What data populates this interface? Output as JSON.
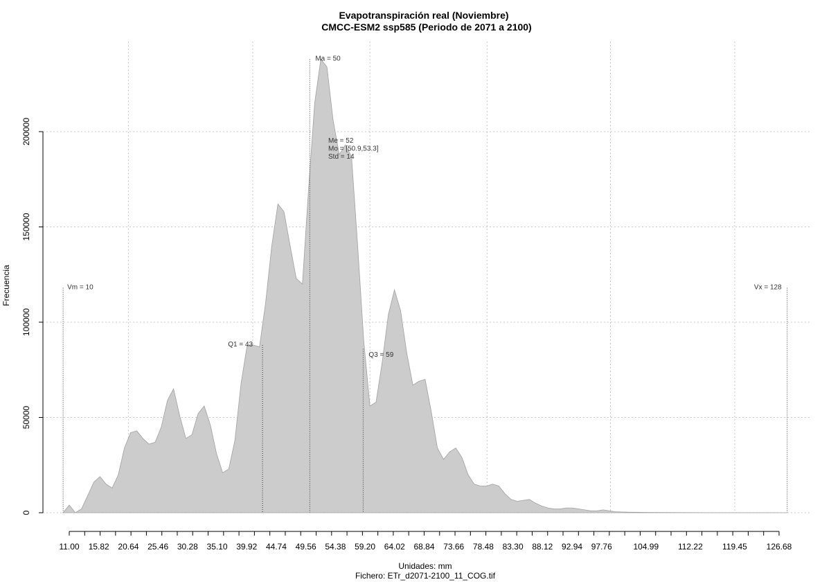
{
  "chart_data": {
    "type": "area",
    "title": "Evapotranspiración real (Noviembre)",
    "subtitle": "CMCC-ESM2 ssp585 (Periodo de 2071 a 2100)",
    "xlabel": "Unidades: mm",
    "ylabel": "Frecuencia",
    "caption": "Fichero: ETr_d2071-2100_11_COG.tif",
    "xlim": [
      8,
      130
    ],
    "ylim": [
      0,
      240000
    ],
    "grid": true,
    "x_ticks": [
      11.0,
      15.82,
      20.64,
      25.46,
      30.28,
      35.1,
      39.92,
      44.74,
      49.56,
      54.38,
      59.2,
      64.02,
      68.84,
      73.66,
      78.48,
      83.3,
      88.12,
      92.94,
      97.76,
      104.99,
      112.22,
      119.45,
      126.68
    ],
    "x_tick_labels": [
      "11.00",
      "15.82",
      "20.64",
      "25.46",
      "30.28",
      "35.10",
      "39.92",
      "44.74",
      "49.56",
      "54.38",
      "59.20",
      "64.02",
      "68.84",
      "73.66",
      "78.48",
      "83.30",
      "88.12",
      "92.94",
      "97.76",
      "104.99",
      "112.22",
      "119.45",
      "126.68"
    ],
    "y_ticks": [
      0,
      50000,
      100000,
      150000,
      200000
    ],
    "y_tick_labels": [
      "0",
      "50000",
      "100000",
      "150000",
      "200000"
    ],
    "series": [
      {
        "color": "#cccccc",
        "x": [
          10,
          11,
          12,
          13,
          14,
          15,
          16,
          17,
          18,
          19,
          20,
          21,
          22,
          23,
          24,
          25,
          26,
          27,
          28,
          29,
          30,
          31,
          32,
          33,
          34,
          35,
          36,
          37,
          38,
          39,
          40,
          41,
          42,
          43,
          44,
          45,
          46,
          47,
          48,
          49,
          50,
          51,
          52,
          53,
          54,
          55,
          56,
          57,
          58,
          59,
          60,
          61,
          62,
          63,
          64,
          65,
          66,
          67,
          68,
          69,
          70,
          71,
          72,
          73,
          74,
          75,
          76,
          77,
          78,
          79,
          80,
          81,
          82,
          83,
          84,
          85,
          86,
          87,
          88,
          89,
          90,
          91,
          92,
          93,
          94,
          95,
          96,
          97,
          98,
          99,
          100,
          102,
          105,
          108,
          111,
          115,
          120,
          125,
          128
        ],
        "y": [
          0,
          4000,
          0,
          2000,
          9000,
          16000,
          19000,
          15000,
          13000,
          20000,
          34000,
          42000,
          43000,
          39000,
          36000,
          37000,
          45000,
          59000,
          65000,
          51000,
          39000,
          41000,
          52000,
          56000,
          46000,
          31000,
          21000,
          23000,
          38000,
          68000,
          88000,
          88000,
          87000,
          110000,
          140000,
          162000,
          158000,
          140000,
          123000,
          120000,
          170000,
          215000,
          238000,
          234000,
          206000,
          188000,
          193000,
          187000,
          140000,
          90000,
          56000,
          58000,
          79000,
          104000,
          117000,
          106000,
          84000,
          67000,
          69000,
          70000,
          53000,
          34000,
          28000,
          32000,
          34000,
          29000,
          20000,
          15000,
          14000,
          14000,
          15000,
          14000,
          10000,
          7000,
          6000,
          6500,
          7000,
          5000,
          3500,
          2500,
          2000,
          2000,
          2500,
          2500,
          2000,
          1500,
          1000,
          1000,
          1500,
          1000,
          500,
          300,
          200,
          100,
          80,
          50,
          30,
          20,
          0
        ]
      }
    ],
    "annotations": [
      {
        "label": "Vm = 10",
        "x": 10,
        "y_top": 118000
      },
      {
        "label": "Q1 = 43",
        "x": 42.5,
        "y_top": 88000
      },
      {
        "label": "Ma = 50",
        "x": 50.2,
        "y_top": 238000
      },
      {
        "label": "Q3 = 59",
        "x": 58.9,
        "y_top": 86000
      },
      {
        "label": "Vx = 128",
        "x": 128,
        "y_top": 118000
      }
    ],
    "stats": [
      "Me = 52",
      "Mo = [50.9,53.3]",
      "Std = 14"
    ]
  }
}
